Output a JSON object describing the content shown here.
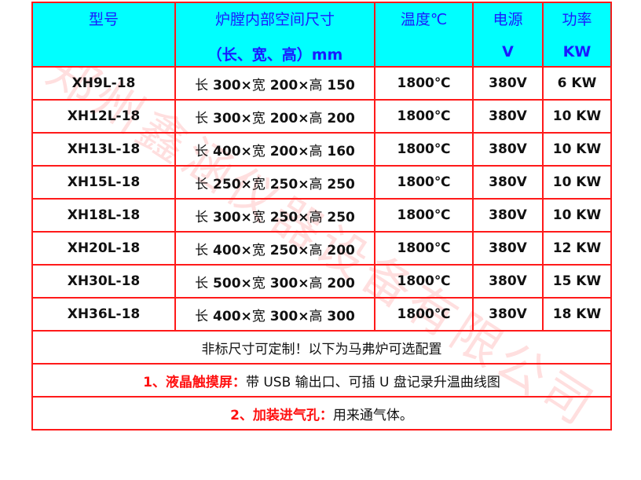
{
  "header": {
    "model": "型号",
    "size_line1": "炉膛内部空间尺寸",
    "size_line2": "（长、宽、高）mm",
    "temp": "温度℃",
    "power_line1": "电源",
    "power_line2": "V",
    "watt_line1": "功率",
    "watt_line2": "KW"
  },
  "rows": [
    {
      "model": "XH9L-18",
      "l": "长",
      "a": "300×",
      "w": "宽",
      "b": "200×",
      "h": "高",
      "c": "150",
      "temp": "1800℃",
      "volt": "380V",
      "power": "6 KW"
    },
    {
      "model": "XH12L-18",
      "l": "长",
      "a": "300×",
      "w": "宽",
      "b": "200×",
      "h": "高",
      "c": "200",
      "temp": "1800℃",
      "volt": "380V",
      "power": "10 KW"
    },
    {
      "model": "XH13L-18",
      "l": "长",
      "a": "400×",
      "w": "宽",
      "b": "200×",
      "h": "高",
      "c": "160",
      "temp": "1800℃",
      "volt": "380V",
      "power": "10 KW"
    },
    {
      "model": "XH15L-18",
      "l": "长",
      "a": "250×",
      "w": "宽",
      "b": "250×",
      "h": "高",
      "c": "250",
      "temp": "1800℃",
      "volt": "380V",
      "power": "10 KW"
    },
    {
      "model": "XH18L-18",
      "l": "长",
      "a": "300×",
      "w": "宽",
      "b": "250×",
      "h": "高",
      "c": "250",
      "temp": "1800℃",
      "volt": "380V",
      "power": "10 KW"
    },
    {
      "model": "XH20L-18",
      "l": "长",
      "a": "400×",
      "w": "宽",
      "b": "250×",
      "h": "高",
      "c": "200",
      "temp": "1800℃",
      "volt": "380V",
      "power": "12 KW"
    },
    {
      "model": "XH30L-18",
      "l": "长",
      "a": "500×",
      "w": "宽",
      "b": "300×",
      "h": "高",
      "c": "200",
      "temp": "1800℃",
      "volt": "380V",
      "power": "15 KW"
    },
    {
      "model": "XH36L-18",
      "l": "长",
      "a": "400×",
      "w": "宽",
      "b": "300×",
      "h": "高",
      "c": "300",
      "temp": "1800℃",
      "volt": "380V",
      "power": "18 KW"
    }
  ],
  "notes": {
    "custom": "非标尺寸可定制！以下为马弗炉可选配置",
    "opt1_label": "1、液晶触摸屏：",
    "opt1_text": "带 USB 输出口、可插 U 盘记录升温曲线图",
    "opt2_label": "2、加装进气孔：",
    "opt2_text": "用来通气体。"
  },
  "watermark": "郑州鑫涵仪器设备有限公司",
  "colors": {
    "header_bg": "#00ffff",
    "header_text": "#1a1aff",
    "border": "#ff1a1a",
    "option_label": "#ff1010"
  }
}
